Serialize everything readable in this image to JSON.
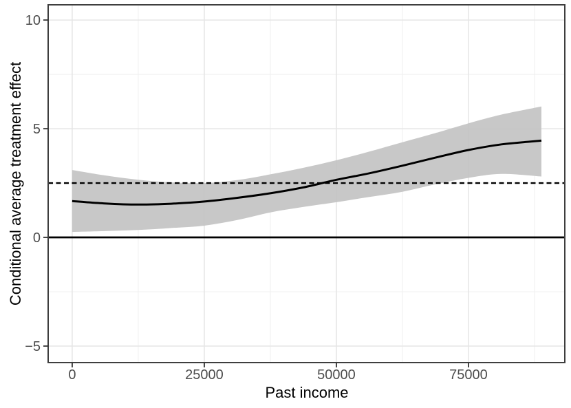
{
  "figure": {
    "kind": "statistical-plot",
    "background": "#ffffff"
  },
  "chart_data": {
    "type": "line",
    "title": "",
    "xlabel": "Past income",
    "ylabel": "Conditional average treatment effect",
    "xlim": [
      -4550,
      93230
    ],
    "ylim": [
      -5.76,
      10.7
    ],
    "grid": "major+minor",
    "legend": "none",
    "x_ticks": {
      "values": [
        0,
        25000,
        50000,
        75000
      ],
      "labels": [
        "0",
        "25000",
        "50000",
        "75000"
      ]
    },
    "y_ticks": {
      "values": [
        -5,
        0,
        5,
        10
      ],
      "labels": [
        "−5",
        "0",
        "5",
        "10"
      ]
    },
    "x_minor": [
      12500,
      37500,
      62500,
      87500
    ],
    "y_minor": [
      -2.5,
      2.5,
      7.5
    ],
    "series": [
      {
        "name": "conditional-average-treatment-effect-smooth",
        "line_color": "#000000",
        "x": [
          0,
          6250,
          12500,
          18750,
          25000,
          31250,
          37500,
          43750,
          50000,
          56250,
          62500,
          68750,
          75000,
          81250,
          88800
        ],
        "y": [
          1.67,
          1.56,
          1.51,
          1.55,
          1.65,
          1.82,
          2.03,
          2.3,
          2.65,
          2.95,
          3.3,
          3.67,
          4.02,
          4.28,
          4.45
        ],
        "band": {
          "name": "confidence-band",
          "fill": "#c3c3c3",
          "upper": [
            3.1,
            2.85,
            2.65,
            2.53,
            2.5,
            2.64,
            2.9,
            3.2,
            3.55,
            3.95,
            4.38,
            4.8,
            5.25,
            5.65,
            6.02
          ],
          "lower": [
            0.25,
            0.29,
            0.34,
            0.43,
            0.54,
            0.8,
            1.15,
            1.4,
            1.62,
            1.86,
            2.1,
            2.44,
            2.74,
            2.92,
            2.8
          ]
        }
      }
    ],
    "reference_lines": [
      {
        "name": "zero-effect-line",
        "axis": "y",
        "value": 0,
        "style": "solid",
        "color": "#000000"
      },
      {
        "name": "average-effect-line",
        "axis": "y",
        "value": 2.5,
        "style": "dashed",
        "color": "#000000"
      }
    ]
  },
  "style": {
    "panel_border": "#3e3e3e",
    "grid_major": "#e5e5e5",
    "grid_minor": "#f0f0f0",
    "tick_mark": "#333333",
    "tick_label": "#4d4d4d",
    "band_fill": "#c3c3c3",
    "line_color": "#000000"
  }
}
